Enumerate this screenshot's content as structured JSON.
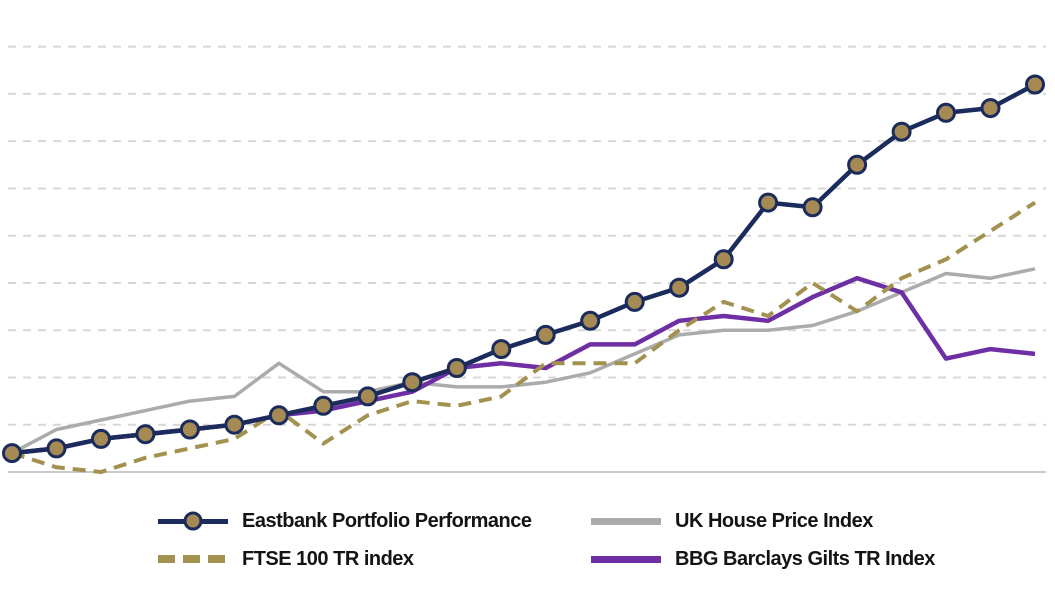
{
  "chart_data": {
    "type": "line",
    "title": "",
    "xlabel": "",
    "ylabel": "",
    "x_axis": {
      "tick_labels_visible": false,
      "num_points": 24
    },
    "ylim": [
      100,
      195
    ],
    "baseline_value": 100,
    "gridline_values": [
      110,
      120,
      130,
      140,
      150,
      160,
      170,
      180,
      190
    ],
    "grid_style": "horizontal-dashed",
    "legend_position": "bottom",
    "colors": {
      "gridline": "#d7d7d7",
      "baseline": "#c9c9c9",
      "background": "#ffffff",
      "legend_text": "#141414"
    },
    "series": [
      {
        "name": "Eastbank Portfolio Performance",
        "color": "#1a2b5c",
        "marker_fill": "#a68a54",
        "line_style": "solid-markers",
        "values": [
          104,
          105,
          107,
          108,
          109,
          110,
          112,
          114,
          116,
          119,
          122,
          126,
          129,
          132,
          136,
          139,
          145,
          157,
          156,
          165,
          172,
          176,
          177,
          182
        ]
      },
      {
        "name": "FTSE 100 TR index",
        "color": "#a3914f",
        "line_style": "dashed",
        "values": [
          104,
          101,
          100,
          103,
          105,
          107,
          113,
          106,
          112,
          115,
          114,
          116,
          123,
          123,
          123,
          130,
          136,
          133,
          140,
          134,
          141,
          145,
          151,
          157
        ]
      },
      {
        "name": "UK House Price Index",
        "color": "#ababab",
        "line_style": "solid-thin",
        "values": [
          104,
          109,
          111,
          113,
          115,
          116,
          123,
          117,
          117,
          119,
          118,
          118,
          119,
          121,
          125,
          129,
          130,
          130,
          131,
          134,
          138,
          142,
          141,
          143
        ]
      },
      {
        "name": "BBG Barclays Gilts TR Index",
        "color": "#6e2fa5",
        "line_style": "solid",
        "values": [
          104,
          105,
          107,
          108,
          109,
          110,
          112,
          113,
          115,
          117,
          122,
          123,
          122,
          127,
          127,
          132,
          133,
          132,
          137,
          141,
          138,
          124,
          126,
          125
        ]
      }
    ]
  }
}
